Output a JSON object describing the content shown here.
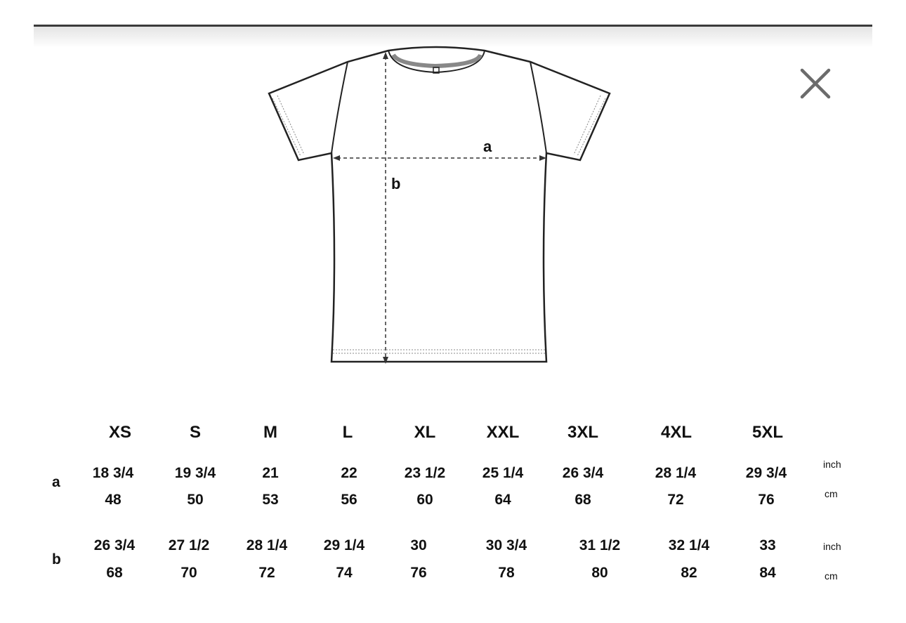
{
  "diagram": {
    "label_a": "a",
    "label_b": "b"
  },
  "close_icon": "close-icon",
  "table": {
    "sizes": [
      "XS",
      "S",
      "M",
      "L",
      "XL",
      "XXL",
      "3XL",
      "4XL",
      "5XL"
    ],
    "rows": [
      {
        "label": "a",
        "inch": [
          "18 3/4",
          "19 3/4",
          "21",
          "22",
          "23 1/2",
          "25 1/4",
          "26 3/4",
          "28 1/4",
          "29 3/4"
        ],
        "cm": [
          "48",
          "50",
          "53",
          "56",
          "60",
          "64",
          "68",
          "72",
          "76"
        ],
        "inch_unit": "inch",
        "cm_unit": "cm"
      },
      {
        "label": "b",
        "inch": [
          "26 3/4",
          "27 1/2",
          "28 1/4",
          "29 1/4",
          "30",
          "30 3/4",
          "31 1/2",
          "32 1/4",
          "33"
        ],
        "cm": [
          "68",
          "70",
          "72",
          "74",
          "76",
          "78",
          "80",
          "82",
          "84"
        ],
        "inch_unit": "inch",
        "cm_unit": "cm"
      }
    ]
  }
}
